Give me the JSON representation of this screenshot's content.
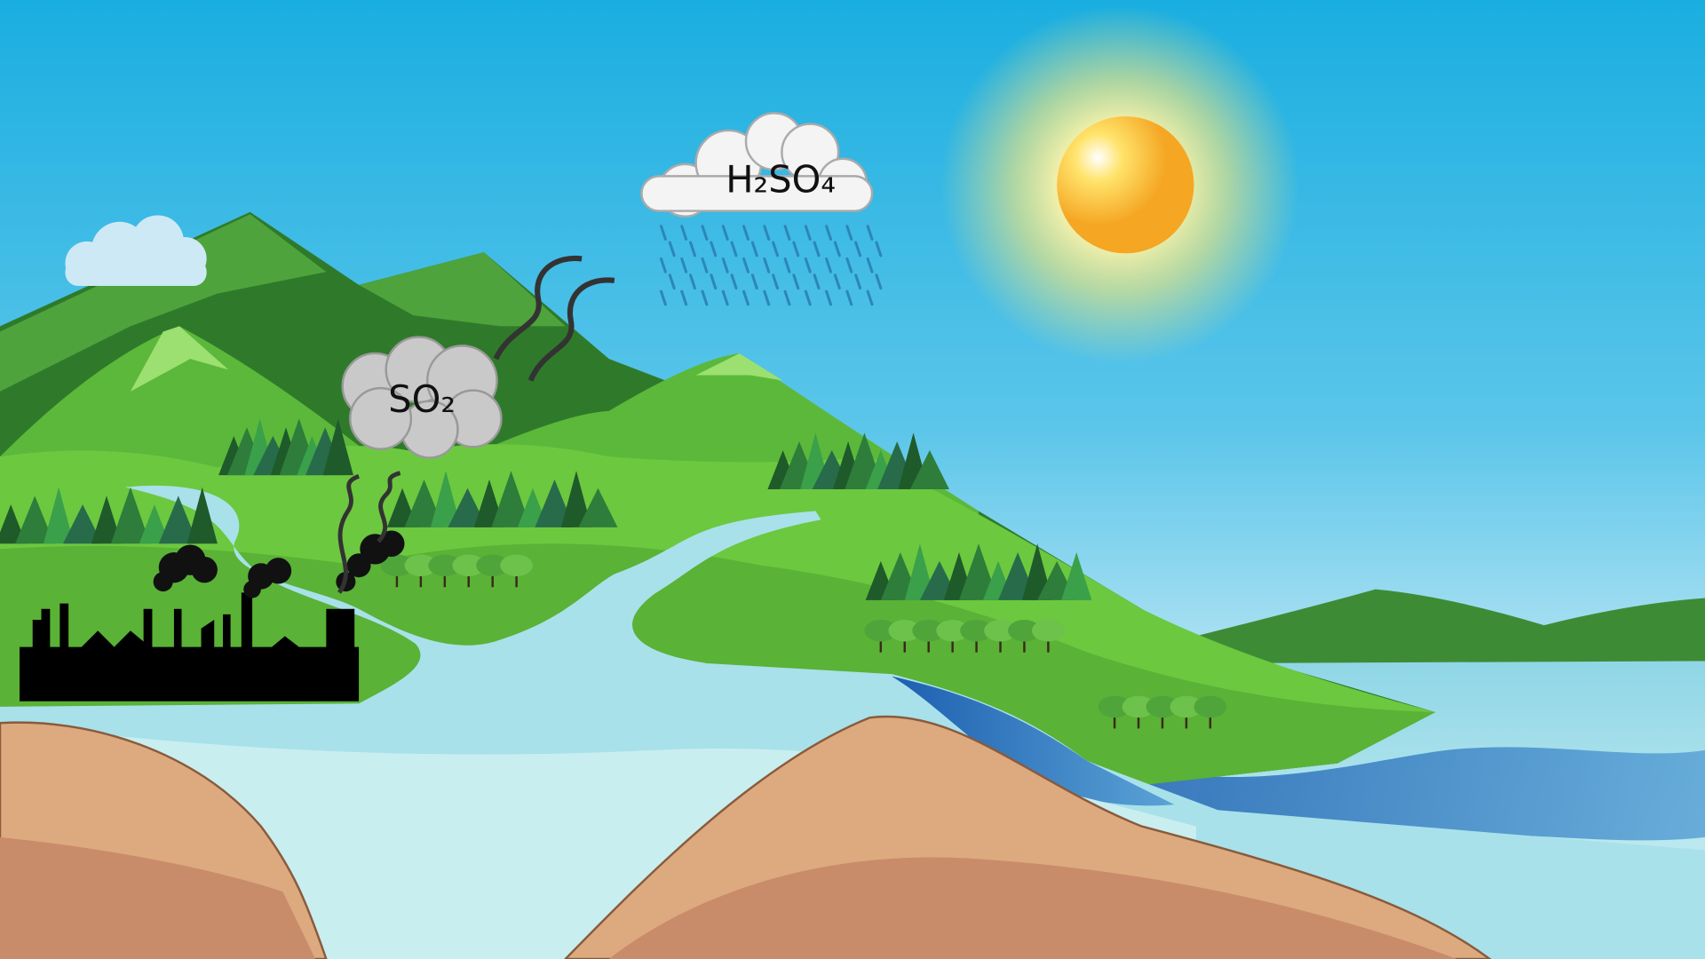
{
  "clouds": [
    {
      "label": "H₂SO₄"
    },
    {
      "label": "SO₂"
    }
  ]
}
